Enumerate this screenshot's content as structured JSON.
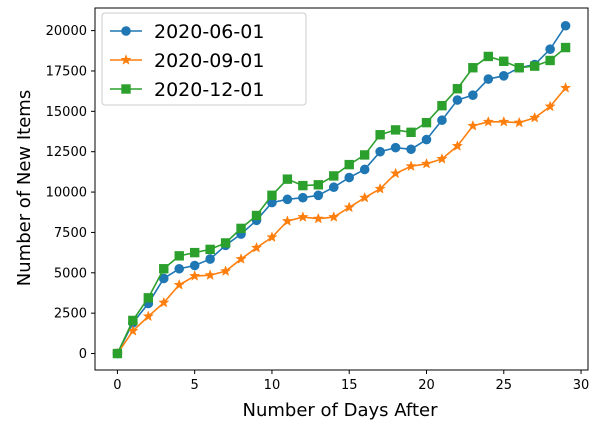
{
  "chart_data": {
    "type": "line",
    "title": "",
    "xlabel": "Number of Days After",
    "ylabel": "Number of New Items",
    "xlim": [
      -1.45,
      30.45
    ],
    "ylim": [
      -1020,
      21400
    ],
    "xticks": [
      0,
      5,
      10,
      15,
      20,
      25,
      30
    ],
    "yticks": [
      0,
      2500,
      5000,
      7500,
      10000,
      12500,
      15000,
      17500,
      20000
    ],
    "grid": false,
    "legend_position": "upper-left",
    "x": [
      0,
      1,
      2,
      3,
      4,
      5,
      6,
      7,
      8,
      9,
      10,
      11,
      12,
      13,
      14,
      15,
      16,
      17,
      18,
      19,
      20,
      21,
      22,
      23,
      24,
      25,
      26,
      27,
      28,
      29
    ],
    "series": [
      {
        "name": "2020-06-01",
        "color": "#1f77b4",
        "marker": "circle",
        "values": [
          0,
          1900,
          3100,
          4650,
          5250,
          5450,
          5850,
          6700,
          7400,
          8250,
          9350,
          9550,
          9650,
          9800,
          10300,
          10900,
          11400,
          12500,
          12750,
          12650,
          13250,
          14450,
          15700,
          16000,
          17000,
          17200,
          17700,
          17900,
          18850,
          20300
        ]
      },
      {
        "name": "2020-09-01",
        "color": "#ff7f0e",
        "marker": "star",
        "values": [
          0,
          1400,
          2300,
          3150,
          4250,
          4800,
          4850,
          5100,
          5850,
          6550,
          7200,
          8200,
          8450,
          8350,
          8450,
          9050,
          9650,
          10200,
          11150,
          11600,
          11750,
          12050,
          12850,
          14100,
          14350,
          14350,
          14300,
          14600,
          15300,
          16450
        ]
      },
      {
        "name": "2020-12-01",
        "color": "#2ca02c",
        "marker": "square",
        "values": [
          0,
          2050,
          3450,
          5250,
          6050,
          6250,
          6450,
          6850,
          7750,
          8550,
          9800,
          10800,
          10400,
          10450,
          11000,
          11700,
          12300,
          13550,
          13850,
          13700,
          14300,
          15350,
          16400,
          17700,
          18400,
          18100,
          17700,
          17800,
          18150,
          18950
        ]
      }
    ]
  }
}
